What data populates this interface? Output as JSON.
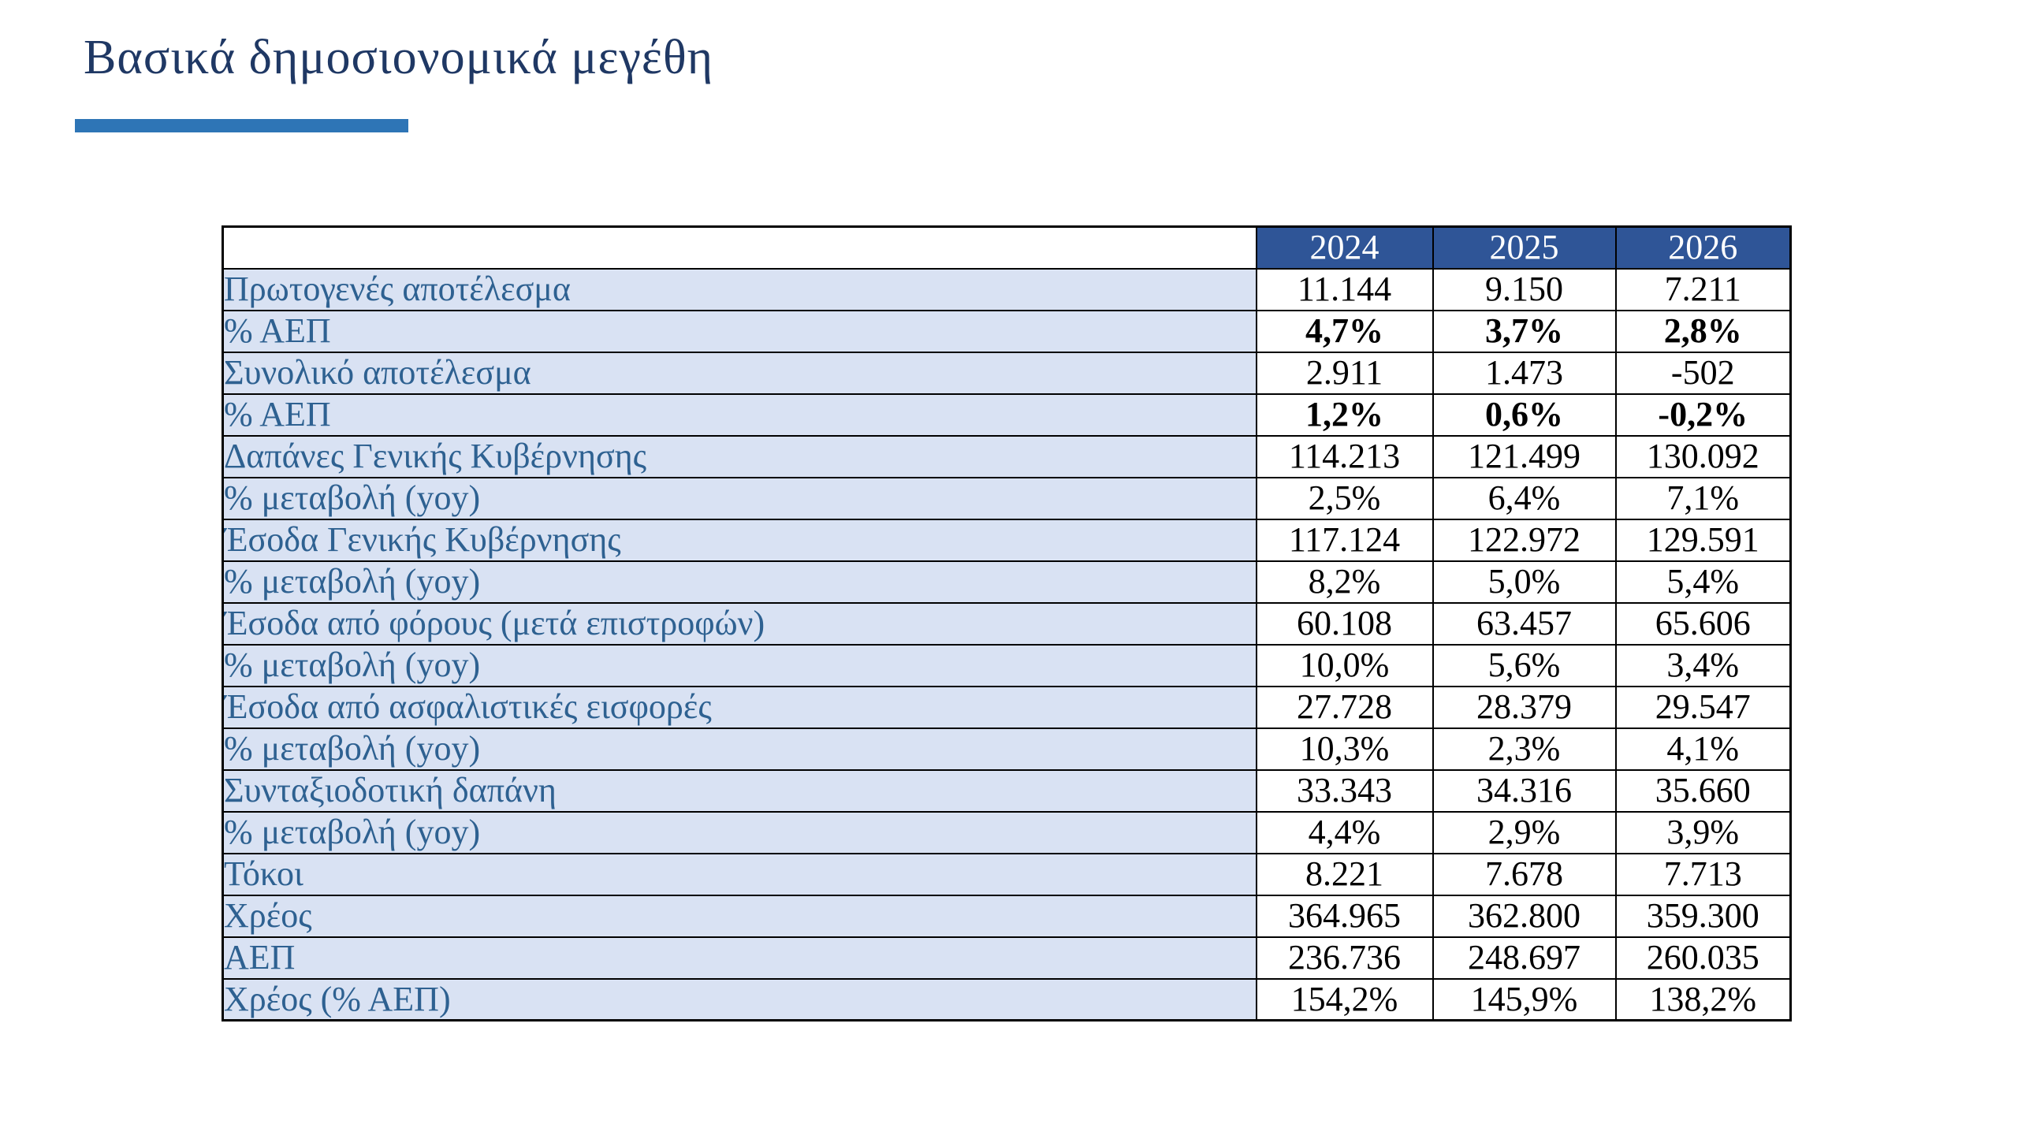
{
  "slide": {
    "title": "Βασικά δημοσιονομικά μεγέθη",
    "colors": {
      "title_text": "#1F3864",
      "title_underline": "#2E75B6",
      "header_bg": "#2F5597",
      "header_text": "#FFFFFF",
      "label_bg": "#D9E2F3",
      "label_text": "#2E6191",
      "value_text": "#000000",
      "border": "#000000"
    }
  },
  "table": {
    "corner_label": "",
    "years": [
      "2024",
      "2025",
      "2026"
    ],
    "rows": [
      {
        "label": "Πρωτογενές αποτέλεσμα",
        "values": [
          "11.144",
          "9.150",
          "7.211"
        ],
        "bold": false
      },
      {
        "label": "% ΑΕΠ",
        "values": [
          "4,7%",
          "3,7%",
          "2,8%"
        ],
        "bold": true
      },
      {
        "label": "Συνολικό αποτέλεσμα",
        "values": [
          "2.911",
          "1.473",
          "-502"
        ],
        "bold": false
      },
      {
        "label": "% ΑΕΠ",
        "values": [
          "1,2%",
          "0,6%",
          "-0,2%"
        ],
        "bold": true
      },
      {
        "label": "Δαπάνες Γενικής Κυβέρνησης",
        "values": [
          "114.213",
          "121.499",
          "130.092"
        ],
        "bold": false
      },
      {
        "label": "% μεταβολή (yoy)",
        "values": [
          "2,5%",
          "6,4%",
          "7,1%"
        ],
        "bold": false
      },
      {
        "label": "Έσοδα Γενικής Κυβέρνησης",
        "values": [
          "117.124",
          "122.972",
          "129.591"
        ],
        "bold": false
      },
      {
        "label": "% μεταβολή (yoy)",
        "values": [
          "8,2%",
          "5,0%",
          "5,4%"
        ],
        "bold": false
      },
      {
        "label": "Έσοδα από φόρους (μετά επιστροφών)",
        "values": [
          "60.108",
          "63.457",
          "65.606"
        ],
        "bold": false
      },
      {
        "label": "% μεταβολή (yoy)",
        "values": [
          "10,0%",
          "5,6%",
          "3,4%"
        ],
        "bold": false
      },
      {
        "label": "Έσοδα από ασφαλιστικές εισφορές",
        "values": [
          "27.728",
          "28.379",
          "29.547"
        ],
        "bold": false
      },
      {
        "label": "% μεταβολή (yoy)",
        "values": [
          "10,3%",
          "2,3%",
          "4,1%"
        ],
        "bold": false
      },
      {
        "label": "Συνταξιοδοτική δαπάνη",
        "values": [
          "33.343",
          "34.316",
          "35.660"
        ],
        "bold": false
      },
      {
        "label": "% μεταβολή (yoy)",
        "values": [
          "4,4%",
          "2,9%",
          "3,9%"
        ],
        "bold": false
      },
      {
        "label": "Τόκοι",
        "values": [
          "8.221",
          "7.678",
          "7.713"
        ],
        "bold": false
      },
      {
        "label": "Χρέος",
        "values": [
          "364.965",
          "362.800",
          "359.300"
        ],
        "bold": false
      },
      {
        "label": "ΑΕΠ",
        "values": [
          "236.736",
          "248.697",
          "260.035"
        ],
        "bold": false
      },
      {
        "label": "Χρέος (% ΑΕΠ)",
        "values": [
          "154,2%",
          "145,9%",
          "138,2%"
        ],
        "bold": false
      }
    ]
  },
  "chart_data": {
    "type": "table",
    "title": "Βασικά δημοσιονομικά μεγέθη",
    "columns": [
      "",
      "2024",
      "2025",
      "2026"
    ],
    "rows": [
      [
        "Πρωτογενές αποτέλεσμα",
        "11.144",
        "9.150",
        "7.211"
      ],
      [
        "% ΑΕΠ",
        "4,7%",
        "3,7%",
        "2,8%"
      ],
      [
        "Συνολικό αποτέλεσμα",
        "2.911",
        "1.473",
        "-502"
      ],
      [
        "% ΑΕΠ",
        "1,2%",
        "0,6%",
        "-0,2%"
      ],
      [
        "Δαπάνες Γενικής Κυβέρνησης",
        "114.213",
        "121.499",
        "130.092"
      ],
      [
        "% μεταβολή (yoy)",
        "2,5%",
        "6,4%",
        "7,1%"
      ],
      [
        "Έσοδα Γενικής Κυβέρνησης",
        "117.124",
        "122.972",
        "129.591"
      ],
      [
        "% μεταβολή (yoy)",
        "8,2%",
        "5,0%",
        "5,4%"
      ],
      [
        "Έσοδα από φόρους (μετά επιστροφών)",
        "60.108",
        "63.457",
        "65.606"
      ],
      [
        "% μεταβολή (yoy)",
        "10,0%",
        "5,6%",
        "3,4%"
      ],
      [
        "Έσοδα από ασφαλιστικές εισφορές",
        "27.728",
        "28.379",
        "29.547"
      ],
      [
        "% μεταβολή (yoy)",
        "10,3%",
        "2,3%",
        "4,1%"
      ],
      [
        "Συνταξιοδοτική δαπάνη",
        "33.343",
        "34.316",
        "35.660"
      ],
      [
        "% μεταβολή (yoy)",
        "4,4%",
        "2,9%",
        "3,9%"
      ],
      [
        "Τόκοι",
        "8.221",
        "7.678",
        "7.713"
      ],
      [
        "Χρέος",
        "364.965",
        "362.800",
        "359.300"
      ],
      [
        "ΑΕΠ",
        "236.736",
        "248.697",
        "260.035"
      ],
      [
        "Χρέος (% ΑΕΠ)",
        "154,2%",
        "145,9%",
        "138,2%"
      ]
    ]
  }
}
